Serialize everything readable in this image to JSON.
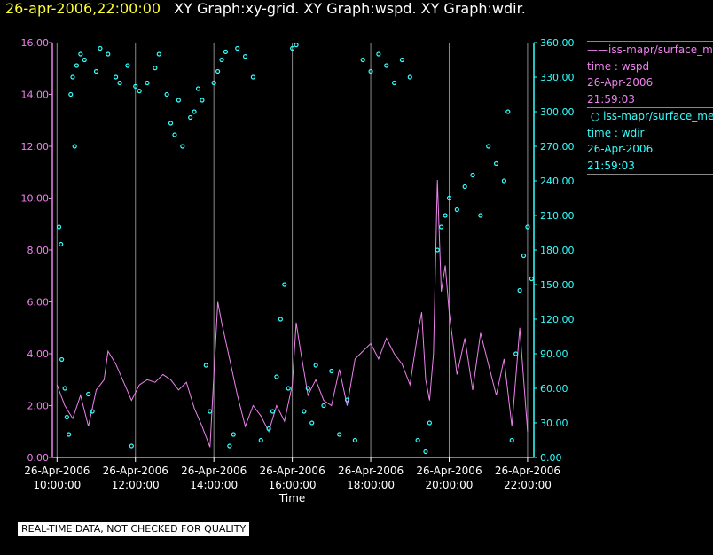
{
  "header": {
    "date_title": "26-apr-2006,22:00:00",
    "graphs_title": "XY Graph:xy-grid.  XY Graph:wspd.  XY Graph:wdir."
  },
  "legend": {
    "wspd": {
      "source": "iss-mapr/surface_met",
      "time_label": "time : wspd",
      "date": "26-Apr-2006",
      "time": "21:59:03"
    },
    "wdir": {
      "source": "iss-mapr/surface_met",
      "time_label": "time : wdir",
      "date": "26-Apr-2006",
      "time": "21:59:03"
    }
  },
  "footer": {
    "disclaimer": "REAL-TIME DATA, NOT CHECKED FOR QUALITY"
  },
  "chart_data": {
    "type": "line+scatter",
    "xlabel": "Time",
    "x_range_hours": [
      9.88,
      22.16
    ],
    "x_ticks": [
      {
        "hour": 10,
        "date": "26-Apr-2006",
        "time": "10:00:00"
      },
      {
        "hour": 12,
        "date": "26-Apr-2006",
        "time": "12:00:00"
      },
      {
        "hour": 14,
        "date": "26-Apr-2006",
        "time": "14:00:00"
      },
      {
        "hour": 16,
        "date": "26-Apr-2006",
        "time": "16:00:00"
      },
      {
        "hour": 18,
        "date": "26-Apr-2006",
        "time": "18:00:00"
      },
      {
        "hour": 20,
        "date": "26-Apr-2006",
        "time": "20:00:00"
      },
      {
        "hour": 22,
        "date": "26-Apr-2006",
        "time": "22:00:00"
      }
    ],
    "vertical_grid_hours": [
      10,
      12,
      14,
      16,
      18,
      20,
      22
    ],
    "left_axis": {
      "name": "wspd",
      "range": [
        0,
        16
      ],
      "ticks": [
        "0.00",
        "2.00",
        "4.00",
        "6.00",
        "8.00",
        "10.00",
        "12.00",
        "14.00",
        "16.00"
      ],
      "color": "#ee82ee"
    },
    "right_axis": {
      "name": "wdir",
      "range": [
        0,
        360
      ],
      "ticks": [
        "0.00",
        "30.00",
        "60.00",
        "90.00",
        "120.00",
        "150.00",
        "180.00",
        "210.00",
        "240.00",
        "270.00",
        "300.00",
        "330.00",
        "360.00"
      ],
      "color": "#33ffff"
    },
    "series": [
      {
        "name": "wspd",
        "style": "line",
        "color": "#ee82ee",
        "axis": "left",
        "points": [
          [
            10.0,
            2.8
          ],
          [
            10.2,
            2.0
          ],
          [
            10.4,
            1.5
          ],
          [
            10.6,
            2.4
          ],
          [
            10.8,
            1.2
          ],
          [
            11.0,
            2.6
          ],
          [
            11.2,
            3.0
          ],
          [
            11.3,
            4.1
          ],
          [
            11.5,
            3.6
          ],
          [
            11.7,
            2.9
          ],
          [
            11.9,
            2.2
          ],
          [
            12.1,
            2.8
          ],
          [
            12.3,
            3.0
          ],
          [
            12.5,
            2.9
          ],
          [
            12.7,
            3.2
          ],
          [
            12.9,
            3.0
          ],
          [
            13.1,
            2.6
          ],
          [
            13.3,
            2.9
          ],
          [
            13.5,
            1.9
          ],
          [
            13.7,
            1.2
          ],
          [
            13.9,
            0.4
          ],
          [
            14.0,
            3.2
          ],
          [
            14.1,
            6.0
          ],
          [
            14.2,
            5.2
          ],
          [
            14.4,
            3.8
          ],
          [
            14.6,
            2.4
          ],
          [
            14.8,
            1.2
          ],
          [
            15.0,
            2.0
          ],
          [
            15.2,
            1.6
          ],
          [
            15.4,
            1.0
          ],
          [
            15.6,
            2.0
          ],
          [
            15.8,
            1.4
          ],
          [
            16.0,
            2.8
          ],
          [
            16.1,
            5.2
          ],
          [
            16.2,
            4.2
          ],
          [
            16.4,
            2.4
          ],
          [
            16.6,
            3.0
          ],
          [
            16.8,
            2.2
          ],
          [
            17.0,
            2.0
          ],
          [
            17.2,
            3.4
          ],
          [
            17.4,
            2.0
          ],
          [
            17.6,
            3.8
          ],
          [
            17.8,
            4.1
          ],
          [
            18.0,
            4.4
          ],
          [
            18.2,
            3.8
          ],
          [
            18.4,
            4.6
          ],
          [
            18.6,
            4.0
          ],
          [
            18.8,
            3.6
          ],
          [
            19.0,
            2.8
          ],
          [
            19.2,
            4.8
          ],
          [
            19.3,
            5.6
          ],
          [
            19.4,
            3.0
          ],
          [
            19.5,
            2.2
          ],
          [
            19.6,
            4.0
          ],
          [
            19.7,
            10.7
          ],
          [
            19.8,
            6.4
          ],
          [
            19.9,
            7.4
          ],
          [
            20.0,
            5.6
          ],
          [
            20.2,
            3.2
          ],
          [
            20.4,
            4.6
          ],
          [
            20.6,
            2.6
          ],
          [
            20.8,
            4.8
          ],
          [
            21.0,
            3.6
          ],
          [
            21.2,
            2.4
          ],
          [
            21.4,
            3.8
          ],
          [
            21.6,
            1.2
          ],
          [
            21.8,
            5.0
          ],
          [
            22.0,
            1.0
          ]
        ]
      },
      {
        "name": "wdir",
        "style": "scatter",
        "marker": "circle",
        "color": "#33ffff",
        "axis": "right",
        "points": [
          [
            10.05,
            200
          ],
          [
            10.1,
            185
          ],
          [
            10.12,
            85
          ],
          [
            10.2,
            60
          ],
          [
            10.25,
            35
          ],
          [
            10.3,
            20
          ],
          [
            10.35,
            315
          ],
          [
            10.4,
            330
          ],
          [
            10.45,
            270
          ],
          [
            10.5,
            340
          ],
          [
            10.6,
            350
          ],
          [
            10.7,
            345
          ],
          [
            10.8,
            55
          ],
          [
            10.9,
            40
          ],
          [
            11.0,
            335
          ],
          [
            11.1,
            355
          ],
          [
            11.3,
            350
          ],
          [
            11.5,
            330
          ],
          [
            11.6,
            325
          ],
          [
            11.8,
            340
          ],
          [
            11.9,
            10
          ],
          [
            12.0,
            322
          ],
          [
            12.1,
            318
          ],
          [
            12.3,
            325
          ],
          [
            12.5,
            338
          ],
          [
            12.6,
            350
          ],
          [
            12.8,
            315
          ],
          [
            12.9,
            290
          ],
          [
            13.0,
            280
          ],
          [
            13.1,
            310
          ],
          [
            13.2,
            270
          ],
          [
            13.4,
            295
          ],
          [
            13.5,
            300
          ],
          [
            13.6,
            320
          ],
          [
            13.7,
            310
          ],
          [
            13.8,
            80
          ],
          [
            13.9,
            40
          ],
          [
            14.0,
            325
          ],
          [
            14.1,
            335
          ],
          [
            14.2,
            345
          ],
          [
            14.3,
            352
          ],
          [
            14.4,
            10
          ],
          [
            14.5,
            20
          ],
          [
            14.6,
            355
          ],
          [
            14.8,
            348
          ],
          [
            15.0,
            330
          ],
          [
            15.2,
            15
          ],
          [
            15.4,
            25
          ],
          [
            15.5,
            40
          ],
          [
            15.6,
            70
          ],
          [
            15.7,
            120
          ],
          [
            15.8,
            150
          ],
          [
            15.9,
            60
          ],
          [
            16.0,
            355
          ],
          [
            16.1,
            358
          ],
          [
            16.3,
            40
          ],
          [
            16.4,
            60
          ],
          [
            16.5,
            30
          ],
          [
            16.6,
            80
          ],
          [
            16.8,
            45
          ],
          [
            17.0,
            75
          ],
          [
            17.2,
            20
          ],
          [
            17.4,
            50
          ],
          [
            17.6,
            15
          ],
          [
            17.8,
            345
          ],
          [
            18.0,
            335
          ],
          [
            18.2,
            350
          ],
          [
            18.4,
            340
          ],
          [
            18.6,
            325
          ],
          [
            18.8,
            345
          ],
          [
            19.0,
            330
          ],
          [
            19.2,
            15
          ],
          [
            19.4,
            5
          ],
          [
            19.5,
            30
          ],
          [
            19.7,
            180
          ],
          [
            19.8,
            200
          ],
          [
            19.9,
            210
          ],
          [
            20.0,
            225
          ],
          [
            20.2,
            215
          ],
          [
            20.4,
            235
          ],
          [
            20.6,
            245
          ],
          [
            20.8,
            210
          ],
          [
            21.0,
            270
          ],
          [
            21.2,
            255
          ],
          [
            21.4,
            240
          ],
          [
            21.5,
            300
          ],
          [
            21.6,
            15
          ],
          [
            21.7,
            90
          ],
          [
            21.8,
            145
          ],
          [
            21.9,
            175
          ],
          [
            22.0,
            200
          ],
          [
            22.1,
            155
          ]
        ]
      }
    ]
  }
}
